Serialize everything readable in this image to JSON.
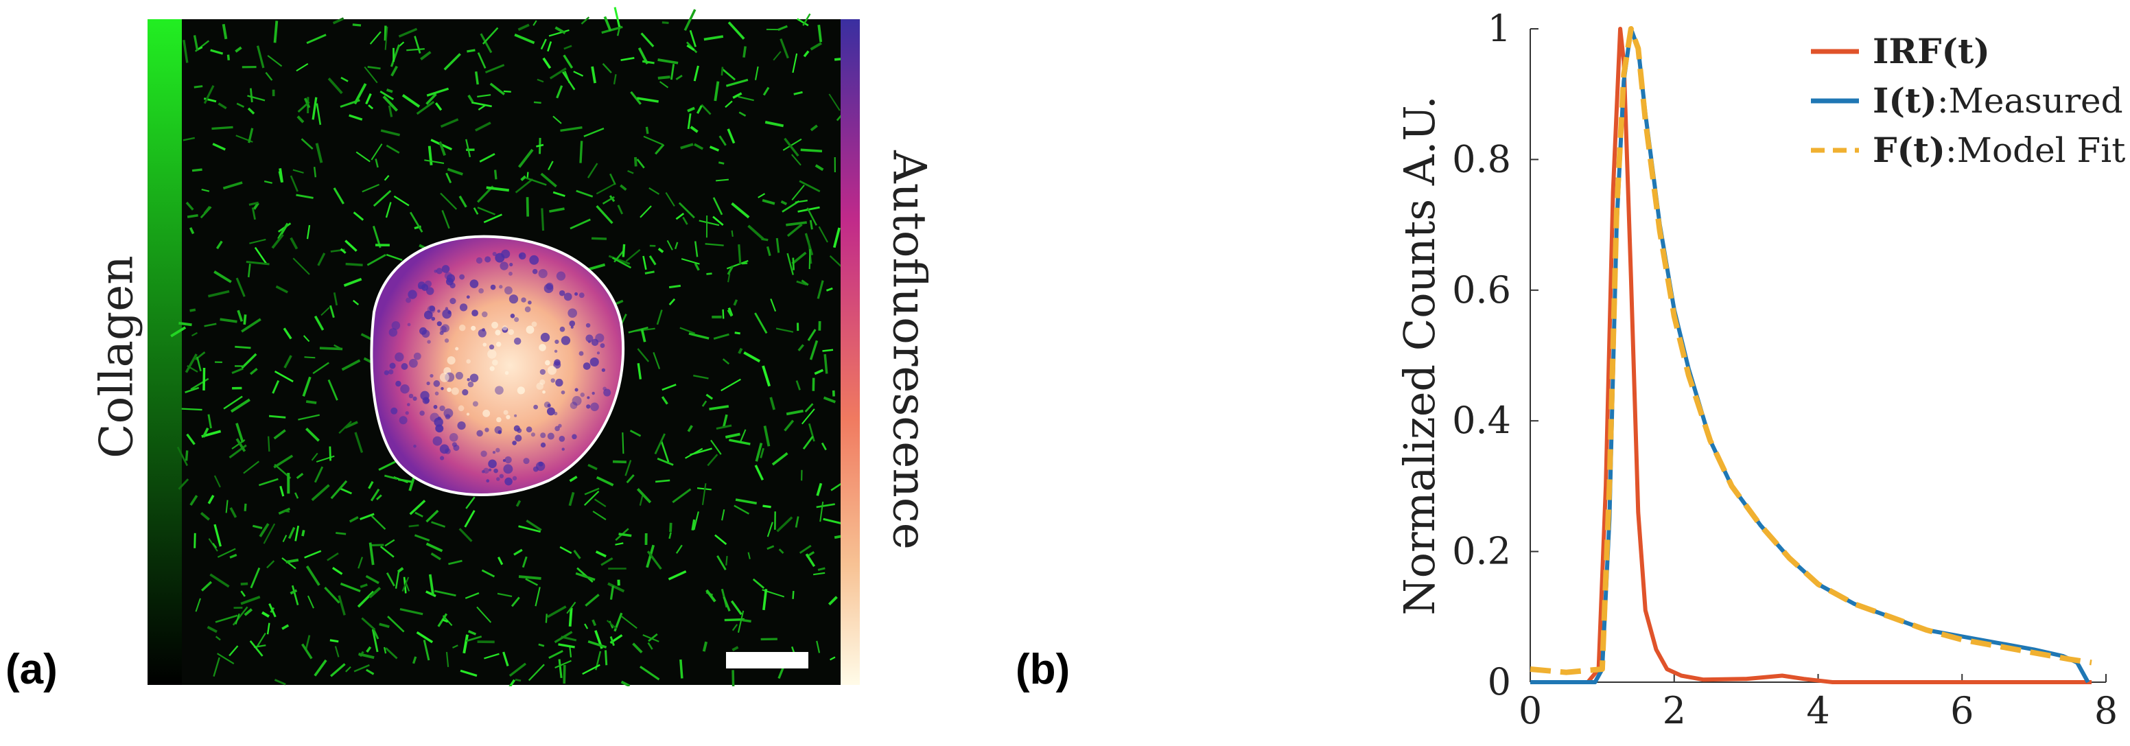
{
  "panels": {
    "a": {
      "label": "(a)",
      "left_colorbar_label": "Collagen",
      "right_colorbar_label": "Autofluorescence",
      "colors": {
        "collagen_top": "#22ee22",
        "collagen_bottom": "#000000",
        "auto_top": "#3a2fa0",
        "auto_mid1": "#c02a8a",
        "auto_mid2": "#f07a60",
        "auto_mid3": "#f7c294",
        "auto_bottom": "#fffbe8"
      }
    },
    "b": {
      "label": "(b)"
    }
  },
  "chart_data": {
    "type": "line",
    "title": "",
    "xlabel": "",
    "ylabel": "Normalized Counts A.U.",
    "xlim": [
      0,
      8
    ],
    "ylim": [
      0,
      1
    ],
    "xticks": [
      "0",
      "2",
      "4",
      "6",
      "8"
    ],
    "yticks": [
      "0",
      "0.2",
      "0.4",
      "0.6",
      "0.8",
      "1"
    ],
    "series": [
      {
        "name": "IRF(t)",
        "legend_bold": "IRF(t)",
        "legend_rest": "",
        "color": "#e0532a",
        "dash": "solid",
        "x": [
          0,
          0.8,
          0.95,
          1.05,
          1.15,
          1.25,
          1.3,
          1.4,
          1.5,
          1.6,
          1.75,
          1.9,
          2.1,
          2.4,
          3.0,
          3.5,
          3.8,
          4.2,
          7.8
        ],
        "y": [
          0,
          0,
          0.02,
          0.3,
          0.75,
          1.0,
          0.95,
          0.62,
          0.26,
          0.11,
          0.05,
          0.02,
          0.01,
          0.004,
          0.005,
          0.01,
          0.005,
          0,
          0
        ]
      },
      {
        "name": "I(t):Measured Decay",
        "legend_bold": "I(t)",
        "legend_rest": ":Measured Decay",
        "color": "#1f77b4",
        "dash": "solid",
        "x": [
          0,
          0.9,
          1.0,
          1.1,
          1.2,
          1.3,
          1.4,
          1.5,
          1.6,
          1.8,
          2.0,
          2.2,
          2.5,
          2.8,
          3.2,
          3.6,
          4.0,
          4.5,
          5.0,
          5.5,
          6.0,
          6.5,
          7.0,
          7.4,
          7.6,
          7.75
        ],
        "y": [
          0,
          0,
          0.02,
          0.25,
          0.7,
          0.92,
          1.0,
          0.97,
          0.87,
          0.7,
          0.57,
          0.48,
          0.37,
          0.3,
          0.24,
          0.19,
          0.15,
          0.12,
          0.1,
          0.08,
          0.07,
          0.06,
          0.05,
          0.04,
          0.03,
          0.0
        ]
      },
      {
        "name": "F(t):Model Fit",
        "legend_bold": "F(t)",
        "legend_rest": ":Model Fit",
        "color": "#f0b030",
        "dash": "dashed",
        "x": [
          0,
          0.5,
          1.0,
          1.1,
          1.2,
          1.3,
          1.4,
          1.5,
          1.6,
          1.8,
          2.0,
          2.2,
          2.5,
          2.8,
          3.2,
          3.6,
          4.0,
          4.5,
          5.0,
          5.5,
          6.0,
          6.5,
          7.0,
          7.5,
          7.8
        ],
        "y": [
          0.02,
          0.015,
          0.02,
          0.3,
          0.72,
          0.93,
          1.0,
          0.97,
          0.86,
          0.69,
          0.56,
          0.47,
          0.37,
          0.3,
          0.24,
          0.19,
          0.15,
          0.12,
          0.1,
          0.08,
          0.065,
          0.055,
          0.045,
          0.035,
          0.03
        ]
      }
    ]
  }
}
